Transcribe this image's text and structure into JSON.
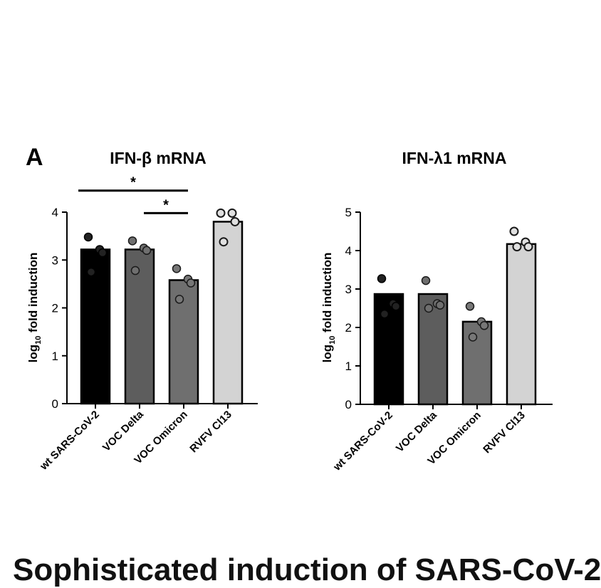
{
  "panel_letter": "A",
  "caption": "Sophisticated induction of SARS-CoV-2",
  "chart_data": [
    {
      "type": "bar",
      "title": "IFN-β mRNA",
      "ylabel_main": "log",
      "ylabel_sub": "10",
      "ylabel_rest": " fold induction",
      "categories": [
        "wt SARS-CoV-2",
        "VOC Delta",
        "VOC Omicron",
        "RVFV Cl13"
      ],
      "values": [
        3.22,
        3.22,
        2.58,
        3.8
      ],
      "ylim": [
        0,
        4
      ],
      "yticks": [
        0,
        1,
        2,
        3,
        4
      ],
      "bar_colors": [
        "#000000",
        "#5d5d5d",
        "#6f6f6f",
        "#d3d3d3"
      ],
      "point_colors": [
        "#222222",
        "#6f6f6f",
        "#777777",
        "#e0e0e0"
      ],
      "points": [
        [
          3.48,
          3.22,
          3.15,
          2.75
        ],
        [
          3.4,
          3.25,
          3.2,
          2.78
        ],
        [
          2.82,
          2.6,
          2.52,
          2.18
        ],
        [
          3.98,
          3.98,
          3.8,
          3.38
        ]
      ],
      "significance": [
        {
          "from": 0,
          "to": 2,
          "label": "*",
          "level": 4.45
        },
        {
          "from": 1,
          "to": 2,
          "label": "*",
          "level": 3.98
        }
      ]
    },
    {
      "type": "bar",
      "title": "IFN-λ1 mRNA",
      "ylabel_main": "log",
      "ylabel_sub": "10",
      "ylabel_rest": " fold induction",
      "categories": [
        "wt SARS-CoV-2",
        "VOC Delta",
        "VOC Omicron",
        "RVFV Cl13"
      ],
      "values": [
        2.87,
        2.87,
        2.15,
        4.17
      ],
      "ylim": [
        0,
        5
      ],
      "yticks": [
        0,
        1,
        2,
        3,
        4,
        5
      ],
      "bar_colors": [
        "#000000",
        "#5d5d5d",
        "#6f6f6f",
        "#d3d3d3"
      ],
      "point_colors": [
        "#222222",
        "#6f6f6f",
        "#777777",
        "#e0e0e0"
      ],
      "points": [
        [
          3.27,
          2.62,
          2.55,
          2.35
        ],
        [
          3.22,
          2.62,
          2.58,
          2.5
        ],
        [
          2.55,
          2.15,
          2.05,
          1.75
        ],
        [
          4.5,
          4.22,
          4.1,
          4.1
        ]
      ],
      "significance": []
    }
  ]
}
